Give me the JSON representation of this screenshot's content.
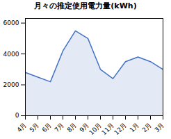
{
  "chart_data": {
    "type": "area",
    "title": "月々の推定使用電力量(kWh)",
    "categories": [
      "4月",
      "5月",
      "6月",
      "7月",
      "8月",
      "9月",
      "10月",
      "11月",
      "12月",
      "1月",
      "2月",
      "3月"
    ],
    "values": [
      2800,
      2500,
      2200,
      4200,
      5500,
      5000,
      3000,
      2400,
      3500,
      3800,
      3500,
      3000
    ],
    "color": "#4472C4",
    "ylim": [
      0,
      6300
    ],
    "yticks": [
      0,
      2000,
      4000,
      6000
    ],
    "grid": false
  }
}
